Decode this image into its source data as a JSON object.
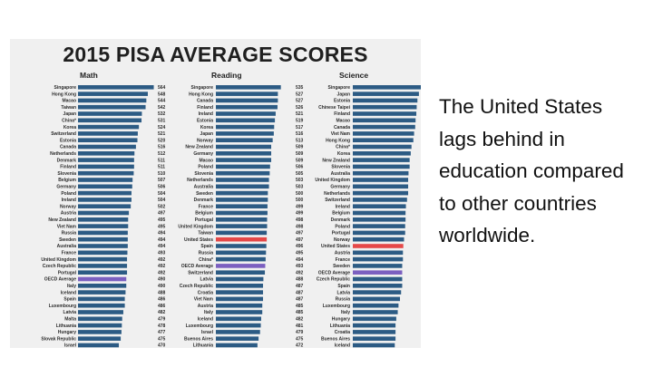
{
  "caption": "The United States lags behind in education compared to other countries worldwide.",
  "colors": {
    "bar": "#2c5b84",
    "highlight_us": "#e54848",
    "highlight_oecd": "#7b5fc0",
    "panel": "#f0f0f0"
  },
  "chart_data": {
    "type": "bar",
    "orientation": "horizontal",
    "title": "2015 PISA AVERAGE SCORES",
    "panels": [
      {
        "name": "Math",
        "categories": [
          "Singapore",
          "Hong Kong",
          "Macao",
          "Taiwan",
          "Japan",
          "China*",
          "Korea",
          "Switzerland",
          "Estonia",
          "Canada",
          "Netherlands",
          "Denmark",
          "Finland",
          "Slovenia",
          "Belgium",
          "Germany",
          "Poland",
          "Ireland",
          "Norway",
          "Austria",
          "New Zealand",
          "Viet Nam",
          "Russia",
          "Sweden",
          "Australia",
          "France",
          "United Kingdom",
          "Czech Republic",
          "Portugal",
          "OECD Average",
          "Italy",
          "Iceland",
          "Spain",
          "Luxembourg",
          "Latvia",
          "Malta",
          "Lithuania",
          "Hungary",
          "Slovak Republic",
          "Israel"
        ],
        "values": [
          564,
          548,
          544,
          542,
          532,
          531,
          524,
          521,
          520,
          516,
          512,
          511,
          511,
          510,
          507,
          506,
          504,
          504,
          502,
          497,
          495,
          495,
          494,
          494,
          494,
          493,
          492,
          492,
          492,
          490,
          490,
          488,
          486,
          486,
          482,
          479,
          478,
          477,
          475,
          470
        ],
        "highlight": {
          "United States": "us",
          "OECD Average": "oecd"
        }
      },
      {
        "name": "Reading",
        "categories": [
          "Singapore",
          "Hong Kong",
          "Canada",
          "Finland",
          "Ireland",
          "Estonia",
          "Korea",
          "Japan",
          "Norway",
          "New Zealand",
          "Germany",
          "Macao",
          "Poland",
          "Slovenia",
          "Netherlands",
          "Australia",
          "Sweden",
          "Denmark",
          "France",
          "Belgium",
          "Portugal",
          "United Kingdom",
          "Taiwan",
          "United States",
          "Spain",
          "Russia",
          "China*",
          "OECD Average",
          "Switzerland",
          "Latvia",
          "Czech Republic",
          "Croatia",
          "Viet Nam",
          "Austria",
          "Italy",
          "Iceland",
          "Luxembourg",
          "Israel",
          "Buenos Aires",
          "Lithuania"
        ],
        "values": [
          535,
          527,
          527,
          526,
          521,
          519,
          517,
          516,
          513,
          509,
          509,
          509,
          506,
          505,
          503,
          503,
          500,
          500,
          499,
          499,
          498,
          498,
          497,
          497,
          496,
          495,
          494,
          493,
          492,
          488,
          487,
          487,
          487,
          485,
          485,
          482,
          481,
          479,
          475,
          472
        ],
        "highlight": {
          "United States": "us",
          "OECD Average": "oecd"
        }
      },
      {
        "name": "Science",
        "categories": [
          "Singapore",
          "Japan",
          "Estonia",
          "Chinese Taipei",
          "Finland",
          "Macao",
          "Canada",
          "Viet Nam",
          "Hong Kong",
          "China*",
          "Korea",
          "New Zealand",
          "Slovenia",
          "Australia",
          "United Kingdom",
          "Germany",
          "Netherlands",
          "Switzerland",
          "Ireland",
          "Belgium",
          "Denmark",
          "Poland",
          "Portugal",
          "Norway",
          "United States",
          "Austria",
          "France",
          "Sweden",
          "OECD Average",
          "Czech Republic",
          "Spain",
          "Latvia",
          "Russia",
          "Luxembourg",
          "Italy",
          "Hungary",
          "Lithuania",
          "Croatia",
          "Buenos Aires",
          "Iceland"
        ],
        "values": [
          556,
          538,
          534,
          532,
          531,
          529,
          528,
          525,
          523,
          518,
          516,
          513,
          513,
          510,
          509,
          509,
          509,
          506,
          503,
          502,
          502,
          501,
          501,
          498,
          496,
          495,
          495,
          493,
          493,
          493,
          493,
          490,
          487,
          483,
          481,
          477,
          475,
          475,
          475,
          473
        ],
        "highlight": {
          "United States": "us",
          "OECD Average": "oecd"
        }
      }
    ]
  }
}
